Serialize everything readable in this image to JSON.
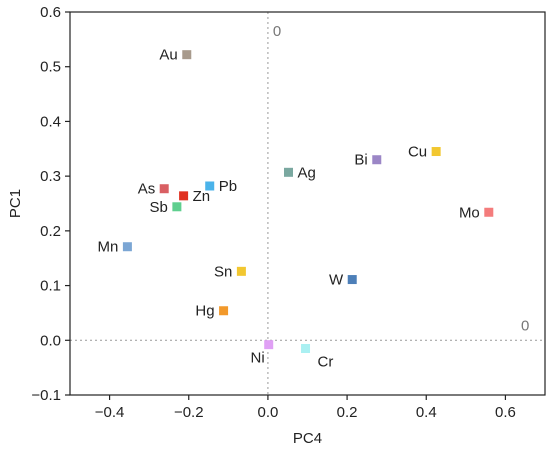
{
  "chart_data": {
    "type": "scatter",
    "title": "",
    "xlabel": "PC4",
    "ylabel": "PC1",
    "xlim": [
      -0.5,
      0.7
    ],
    "ylim": [
      -0.1,
      0.6
    ],
    "x_ticks": [
      "-0.4",
      "-0.2",
      "0.0",
      "0.2",
      "0.4",
      "0.6"
    ],
    "y_ticks": [
      "-0.1",
      "0.0",
      "0.1",
      "0.2",
      "0.3",
      "0.4",
      "0.5",
      "0.6"
    ],
    "x_tick_values": [
      -0.4,
      -0.2,
      0.0,
      0.2,
      0.4,
      0.6
    ],
    "y_tick_values": [
      -0.1,
      0.0,
      0.1,
      0.2,
      0.3,
      0.4,
      0.5,
      0.6
    ],
    "reference_lines": {
      "vertical_at_x": 0,
      "horizontal_at_y": 0,
      "style": "dotted",
      "labels": {
        "vertical": "0",
        "horizontal": "0"
      }
    },
    "grid": false,
    "legend": "none",
    "points": [
      {
        "label": "Au",
        "x": -0.205,
        "y": 0.522,
        "color": "#a89a8c",
        "label_side": "left"
      },
      {
        "label": "Bi",
        "x": 0.275,
        "y": 0.33,
        "color": "#9b86c6",
        "label_side": "left"
      },
      {
        "label": "Cu",
        "x": 0.425,
        "y": 0.345,
        "color": "#f2c730",
        "label_side": "left"
      },
      {
        "label": "Ag",
        "x": 0.052,
        "y": 0.307,
        "color": "#7aa8a0",
        "label_side": "right"
      },
      {
        "label": "As",
        "x": -0.262,
        "y": 0.277,
        "color": "#d95f63",
        "label_side": "left"
      },
      {
        "label": "Pb",
        "x": -0.147,
        "y": 0.282,
        "color": "#4ab3ea",
        "label_side": "right"
      },
      {
        "label": "Zn",
        "x": -0.213,
        "y": 0.264,
        "color": "#e0301f",
        "label_side": "right"
      },
      {
        "label": "Sb",
        "x": -0.23,
        "y": 0.244,
        "color": "#5fcf8f",
        "label_side": "left"
      },
      {
        "label": "Mo",
        "x": 0.558,
        "y": 0.234,
        "color": "#f47c7c",
        "label_side": "left"
      },
      {
        "label": "Mn",
        "x": -0.355,
        "y": 0.171,
        "color": "#7ba6d4",
        "label_side": "left"
      },
      {
        "label": "Sn",
        "x": -0.067,
        "y": 0.126,
        "color": "#f2c730",
        "label_side": "left"
      },
      {
        "label": "W",
        "x": 0.213,
        "y": 0.111,
        "color": "#4d7fb8",
        "label_side": "left"
      },
      {
        "label": "Hg",
        "x": -0.112,
        "y": 0.054,
        "color": "#f2992b",
        "label_side": "left"
      },
      {
        "label": "Ni",
        "x": 0.002,
        "y": -0.008,
        "color": "#e0a0f5",
        "label_side": "below-left"
      },
      {
        "label": "Cr",
        "x": 0.095,
        "y": -0.015,
        "color": "#aaf0f2",
        "label_side": "below-right"
      }
    ]
  }
}
